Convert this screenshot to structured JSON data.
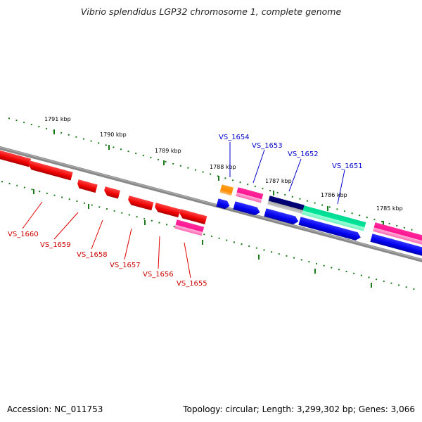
{
  "title": "Vibrio splendidus LGP32 chromosome 1, complete genome",
  "footer": {
    "accession": "Accession: NC_011753",
    "summary": "Topology: circular; Length: 3,299,302 bp; Genes: 3,066"
  },
  "colors": {
    "backbone": "#777777",
    "tick": "#1a7a1a",
    "reverse_gene": "#ff0000",
    "forward_gene": "#0000ee",
    "pseudo_gene": "#ff1493",
    "orange_gene": "#ff8c00",
    "navy_gene": "#000066",
    "green_gene": "#00e69a",
    "label_reverse": "#cc0000",
    "label_forward": "#0000cc"
  },
  "ticks": [
    {
      "label": "1791 kbp"
    },
    {
      "label": "1790 kbp"
    },
    {
      "label": "1789 kbp"
    },
    {
      "label": "1788 kbp"
    },
    {
      "label": "1787 kbp"
    },
    {
      "label": "1786 kbp"
    },
    {
      "label": "1785 kbp"
    }
  ],
  "gene_labels": [
    {
      "id": "VS_1660",
      "strand": "reverse"
    },
    {
      "id": "VS_1659",
      "strand": "reverse"
    },
    {
      "id": "VS_1658",
      "strand": "reverse"
    },
    {
      "id": "VS_1657",
      "strand": "reverse"
    },
    {
      "id": "VS_1656",
      "strand": "reverse"
    },
    {
      "id": "VS_1655",
      "strand": "reverse"
    },
    {
      "id": "VS_1654",
      "strand": "forward"
    },
    {
      "id": "VS_1653",
      "strand": "forward"
    },
    {
      "id": "VS_1652",
      "strand": "forward"
    },
    {
      "id": "VS_1651",
      "strand": "forward"
    }
  ]
}
